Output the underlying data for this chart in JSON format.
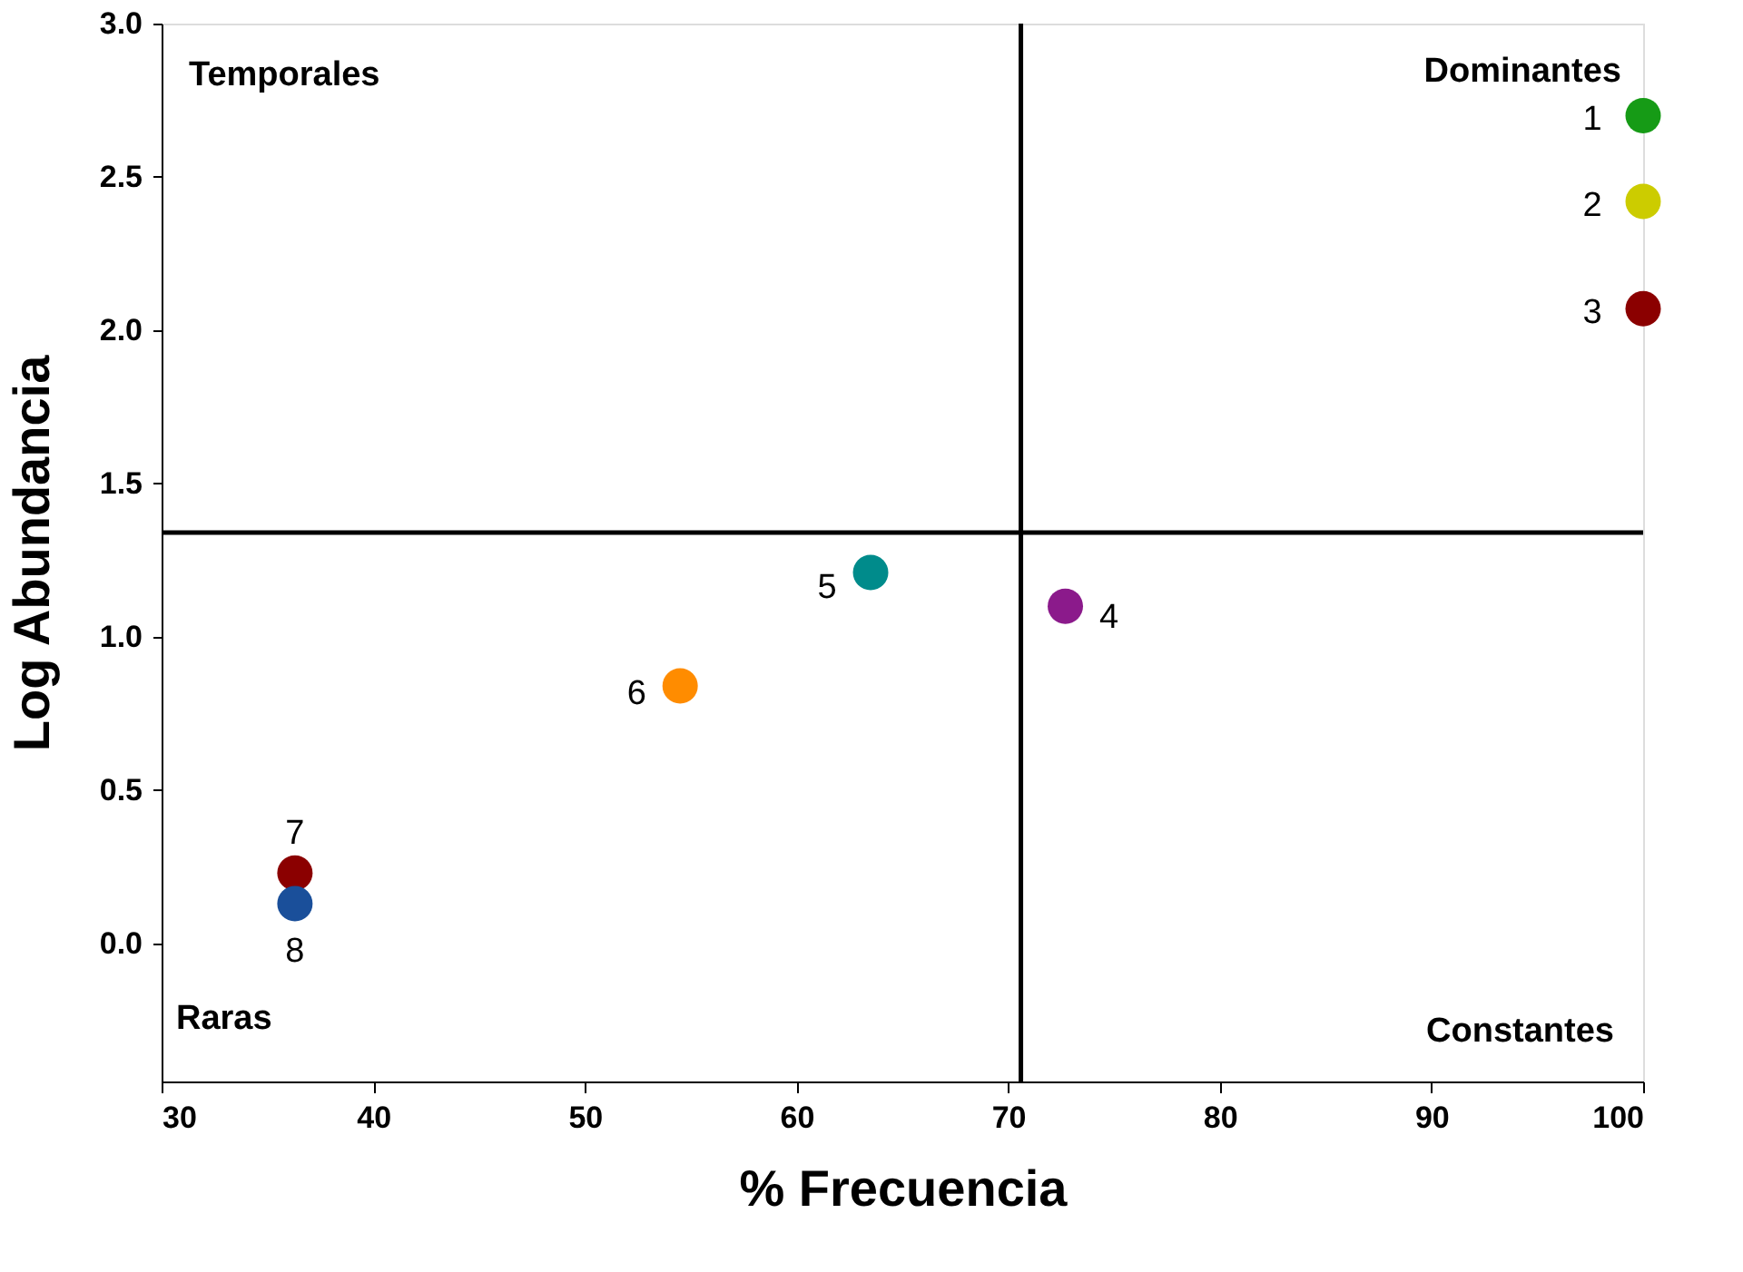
{
  "chart_data": {
    "type": "scatter",
    "xlabel": "% Frecuencia",
    "ylabel": "Log Abundancia",
    "xlim": [
      30,
      100
    ],
    "xticks": [
      30,
      40,
      50,
      60,
      70,
      80,
      90,
      100
    ],
    "ylim": [
      -0.45,
      3.0
    ],
    "yticks": [
      {
        "value": 0,
        "label": "0.0"
      },
      {
        "value": 0.5,
        "label": "0.5"
      },
      {
        "value": 1,
        "label": "1.0"
      },
      {
        "value": 1.5,
        "label": "1.5"
      },
      {
        "value": 2,
        "label": "2.0"
      },
      {
        "value": 2.5,
        "label": "2.5"
      },
      {
        "value": 3,
        "label": "3.0"
      }
    ],
    "marker": "circle",
    "grid": false,
    "legend": false,
    "series": [
      {
        "name": "1",
        "color": "#169b16",
        "x": [
          100
        ],
        "values": [
          2.7
        ]
      },
      {
        "name": "2",
        "color": "#cccc00",
        "x": [
          100
        ],
        "values": [
          2.42
        ]
      },
      {
        "name": "3",
        "color": "#8b0000",
        "x": [
          100
        ],
        "values": [
          2.07
        ]
      },
      {
        "name": "4",
        "color": "#8b1a8b",
        "x": [
          72.7
        ],
        "values": [
          1.1
        ]
      },
      {
        "name": "5",
        "color": "#008b8b",
        "x": [
          63.5
        ],
        "values": [
          1.21
        ]
      },
      {
        "name": "6",
        "color": "#ff8c00",
        "x": [
          54.5
        ],
        "values": [
          0.84
        ]
      },
      {
        "name": "7",
        "color": "#8b0000",
        "x": [
          36.3
        ],
        "values": [
          0.23
        ]
      },
      {
        "name": "8",
        "color": "#1a4f9a",
        "x": [
          36.3
        ],
        "values": [
          0.13
        ]
      }
    ],
    "ref_lines": [
      {
        "axis": "x",
        "value": 70.6
      },
      {
        "axis": "y",
        "value": 1.34
      }
    ],
    "annotations": [
      "Temporales",
      "Dominantes",
      "Raras",
      "Constantes"
    ]
  }
}
